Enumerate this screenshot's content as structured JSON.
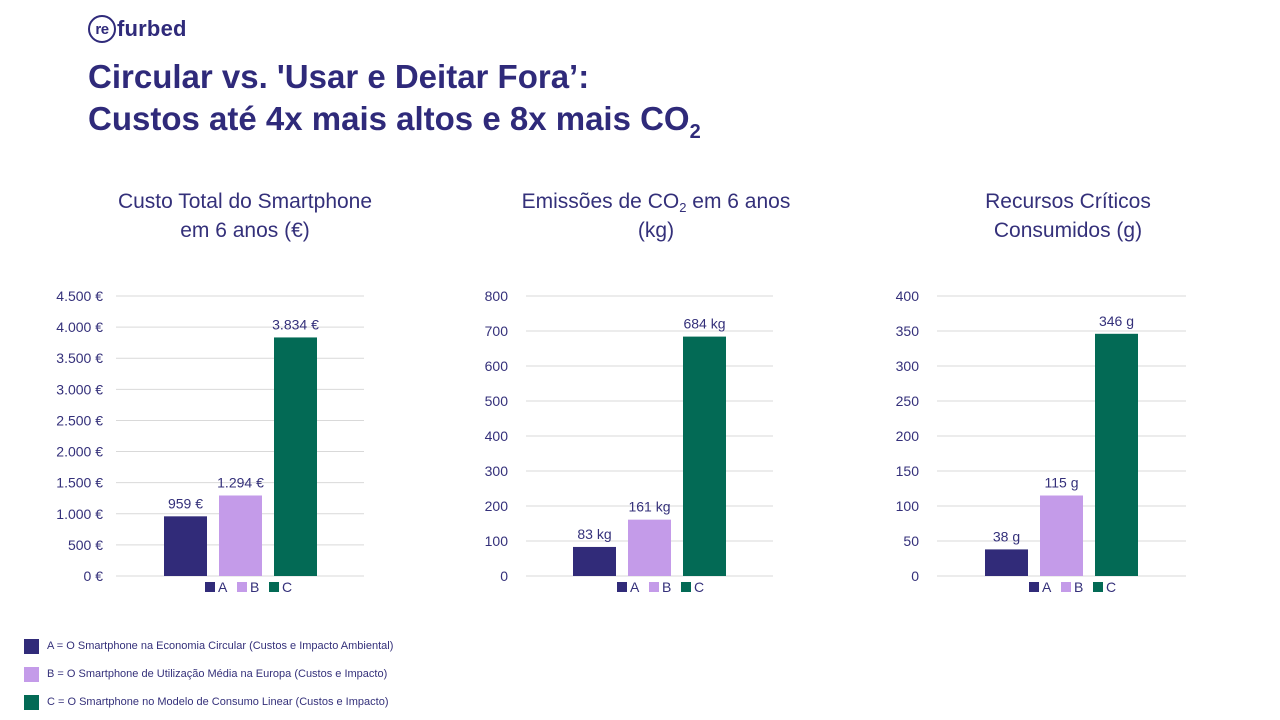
{
  "logo": {
    "mark": "re",
    "rest": "furbed"
  },
  "title": {
    "line1": "Circular vs. 'Usar e Deitar Fora’:",
    "line2": "Custos até 4x mais altos e 8x mais CO",
    "line2_sub": "2"
  },
  "colors": {
    "A": "#312b79",
    "B": "#c49be9",
    "C": "#036a55",
    "text": "#34307a",
    "grid": "#d9d9d9"
  },
  "chart_titles": [
    {
      "line1": "Custo Total do Smartphone",
      "line2": "em 6 anos (€)"
    },
    {
      "line1_pre": "Emissões de CO",
      "line1_sub": "2",
      "line1_post": " em 6 anos",
      "line2": "(kg)"
    },
    {
      "line1": "Recursos Críticos",
      "line2": "Consumidos (g)"
    }
  ],
  "chart_data": [
    {
      "type": "bar",
      "title": "Custo Total do Smartphone em 6 anos (€)",
      "categories": [
        "A",
        "B",
        "C"
      ],
      "values": [
        959,
        1294,
        3834
      ],
      "data_labels": [
        "959 €",
        "1.294 €",
        "3.834 €"
      ],
      "ylim": [
        0,
        4500
      ],
      "yticks": [
        0,
        500,
        1000,
        1500,
        2000,
        2500,
        3000,
        3500,
        4000,
        4500
      ],
      "ytick_labels": [
        "0 €",
        "500 €",
        "1.000 €",
        "1.500 €",
        "2.000 €",
        "2.500 €",
        "3.000 €",
        "3.500 €",
        "4.000 €",
        "4.500 €"
      ],
      "grid": true,
      "legend": [
        "A",
        "B",
        "C"
      ]
    },
    {
      "type": "bar",
      "title": "Emissões de CO2 em 6 anos (kg)",
      "categories": [
        "A",
        "B",
        "C"
      ],
      "values": [
        83,
        161,
        684
      ],
      "data_labels": [
        "83 kg",
        "161 kg",
        "684 kg"
      ],
      "ylim": [
        0,
        800
      ],
      "yticks": [
        0,
        100,
        200,
        300,
        400,
        500,
        600,
        700,
        800
      ],
      "ytick_labels": [
        "0",
        "100",
        "200",
        "300",
        "400",
        "500",
        "600",
        "700",
        "800"
      ],
      "grid": true,
      "legend": [
        "A",
        "B",
        "C"
      ]
    },
    {
      "type": "bar",
      "title": "Recursos Críticos Consumidos (g)",
      "categories": [
        "A",
        "B",
        "C"
      ],
      "values": [
        38,
        115,
        346
      ],
      "data_labels": [
        "38 g",
        "115 g",
        "346 g"
      ],
      "ylim": [
        0,
        400
      ],
      "yticks": [
        0,
        50,
        100,
        150,
        200,
        250,
        300,
        350,
        400
      ],
      "ytick_labels": [
        "0",
        "50",
        "100",
        "150",
        "200",
        "250",
        "300",
        "350",
        "400"
      ],
      "grid": true,
      "legend": [
        "A",
        "B",
        "C"
      ]
    }
  ],
  "footer_legend": [
    {
      "key": "A",
      "text": "A = O Smartphone na Economia Circular (Custos e Impacto Ambiental)"
    },
    {
      "key": "B",
      "text": "B = O Smartphone de Utilização Média na Europa (Custos e Impacto)"
    },
    {
      "key": "C",
      "text": "C = O Smartphone no Modelo de Consumo Linear (Custos e Impacto)"
    }
  ]
}
